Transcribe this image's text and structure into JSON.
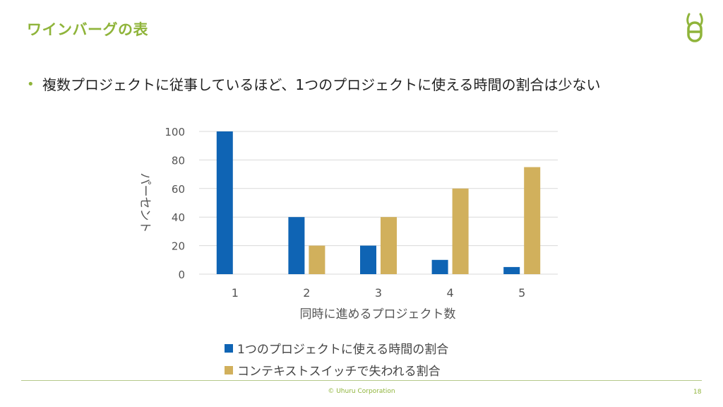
{
  "slide": {
    "title": "ワインバーグの表",
    "bullet": "複数プロジェクトに従事しているほど、1つのプロジェクトに使える時間の割合は少ない",
    "footer": "© Uhuru Corporation",
    "page_number": "18",
    "accent_color": "#8fb43a"
  },
  "chart_data": {
    "type": "bar",
    "categories": [
      "1",
      "2",
      "3",
      "4",
      "5"
    ],
    "series": [
      {
        "name": "1つのプロジェクトに使える時間の割合",
        "values": [
          100,
          40,
          20,
          10,
          5
        ],
        "color": "#0f64b4"
      },
      {
        "name": "コンテキストスイッチで失われる割合",
        "values": [
          0,
          20,
          40,
          60,
          75
        ],
        "color": "#d1b05c"
      }
    ],
    "title": "",
    "xlabel": "同時に進めるプロジェクト数",
    "ylabel": "パーセント",
    "ylim": [
      0,
      100
    ],
    "yticks": [
      0,
      20,
      40,
      60,
      80,
      100
    ],
    "grid": true,
    "legend": "bottom"
  }
}
